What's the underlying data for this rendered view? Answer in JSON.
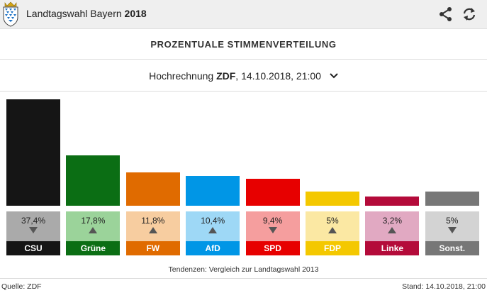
{
  "header": {
    "title_prefix": "Landtagswahl Bayern",
    "title_year": "2018",
    "icons": [
      "bavaria-crest-icon",
      "share-icon",
      "refresh-icon"
    ]
  },
  "section_title": "PROZENTUALE  STIMMENVERTEILUNG",
  "selector": {
    "prefix": "Hochrechnung",
    "source": "ZDF",
    "datetime": ", 14.10.2018, 21:00"
  },
  "chart_data": {
    "type": "bar",
    "categories": [
      "CSU",
      "Grüne",
      "FW",
      "AfD",
      "SPD",
      "FDP",
      "Linke",
      "Sonst."
    ],
    "values": [
      37.4,
      17.8,
      11.8,
      10.4,
      9.4,
      5.0,
      3.2,
      5.0
    ],
    "value_labels": [
      "37,4%",
      "17,8%",
      "11,8%",
      "10,4%",
      "9,4%",
      "5%",
      "3,2%",
      "5%"
    ],
    "trends": [
      "down",
      "up",
      "up",
      "up",
      "down",
      "up",
      "up",
      "down"
    ],
    "colors": [
      "#151515",
      "#0b6e14",
      "#e06b00",
      "#0096e6",
      "#e70000",
      "#f4c800",
      "#b40b3a",
      "#777777"
    ],
    "box_colors": [
      "#aaaaaa",
      "#9bd39a",
      "#f7cda0",
      "#9ed8f6",
      "#f59e9e",
      "#fbe8a3",
      "#e1a9c2",
      "#d3d3d3"
    ],
    "ylim": [
      0,
      37.4
    ]
  },
  "note": "Tendenzen: Vergleich zur Landtagswahl 2013",
  "footer": {
    "source": "Quelle: ZDF",
    "stand": "Stand: 14.10.2018, 21:00"
  }
}
